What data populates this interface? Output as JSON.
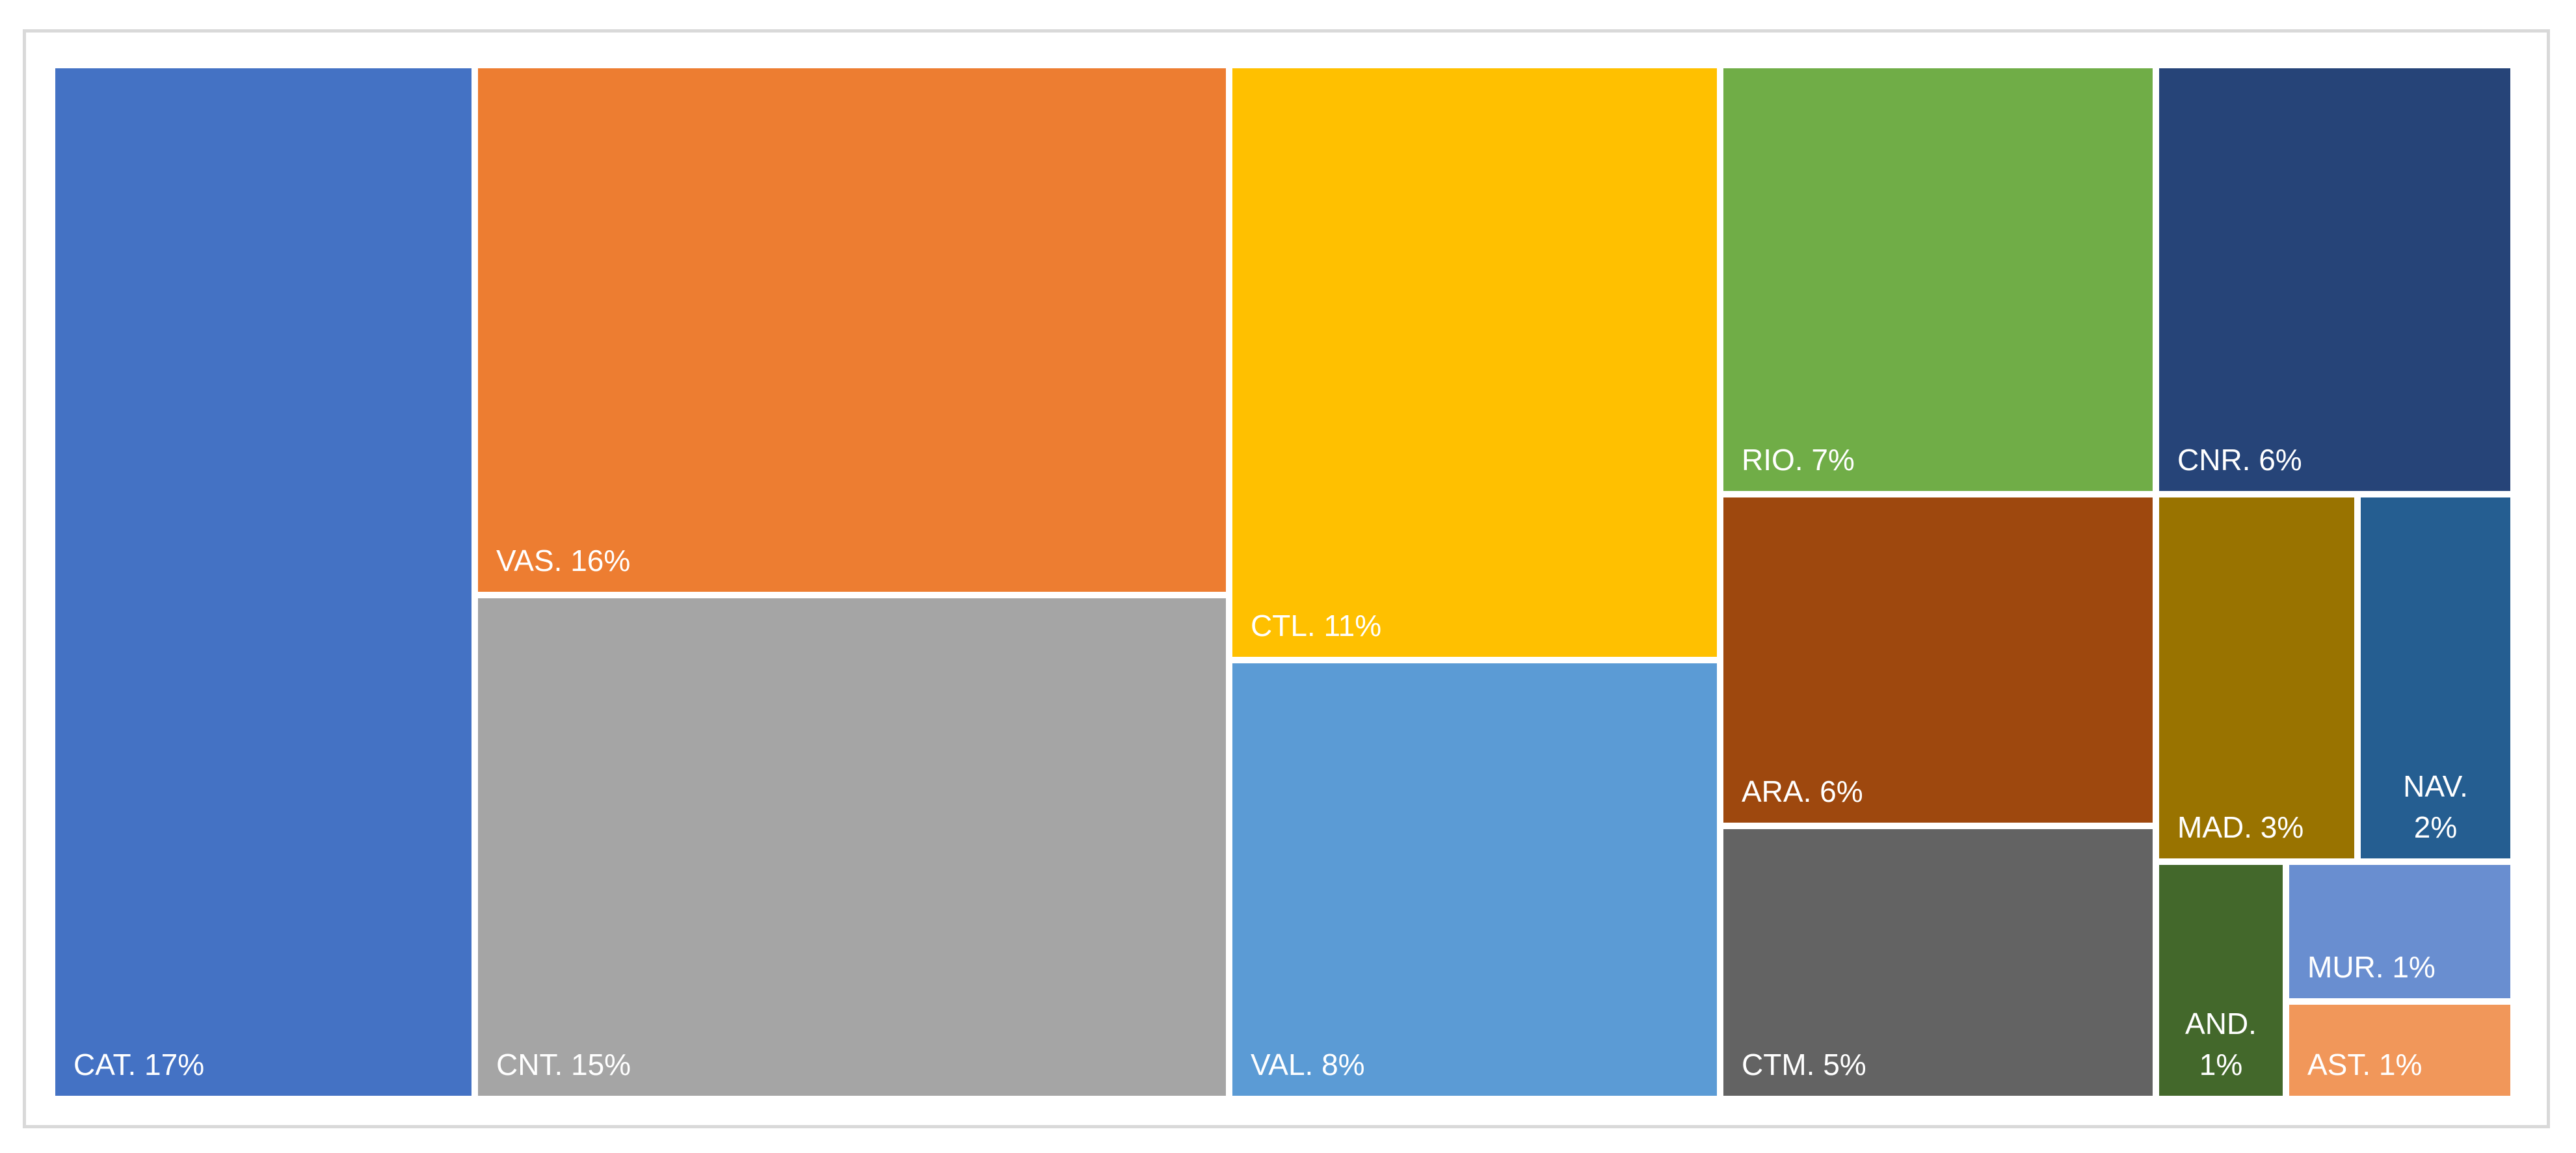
{
  "chart_data": {
    "type": "treemap",
    "items": [
      {
        "name": "CAT.",
        "value": 17,
        "label": "CAT. 17%",
        "color": "#4472C4"
      },
      {
        "name": "VAS.",
        "value": 16,
        "label": "VAS. 16%",
        "color": "#ED7D31"
      },
      {
        "name": "CNT.",
        "value": 15,
        "label": "CNT. 15%",
        "color": "#A5A5A5"
      },
      {
        "name": "CTL.",
        "value": 11,
        "label": "CTL. 11%",
        "color": "#FFC000"
      },
      {
        "name": "VAL.",
        "value": 8,
        "label": "VAL. 8%",
        "color": "#5B9BD5"
      },
      {
        "name": "RIO.",
        "value": 7,
        "label": "RIO. 7%",
        "color": "#70AD47"
      },
      {
        "name": "ARA.",
        "value": 6,
        "label": "ARA. 6%",
        "color": "#9E480E"
      },
      {
        "name": "CTM.",
        "value": 5,
        "label": "CTM. 5%",
        "color": "#636363"
      },
      {
        "name": "CNR.",
        "value": 6,
        "label": "CNR. 6%",
        "color": "#264478"
      },
      {
        "name": "MAD.",
        "value": 3,
        "label": "MAD. 3%",
        "color": "#997300"
      },
      {
        "name": "NAV.",
        "value": 2,
        "label": "NAV. 2%",
        "color": "#255E91"
      },
      {
        "name": "AND.",
        "value": 1,
        "label": "AND. 1%",
        "color": "#43682B"
      },
      {
        "name": "MUR.",
        "value": 1,
        "label": "MUR. 1%",
        "color": "#698ED0"
      },
      {
        "name": "AST.",
        "value": 1,
        "label": "AST. 1%",
        "color": "#F1975A"
      }
    ]
  }
}
